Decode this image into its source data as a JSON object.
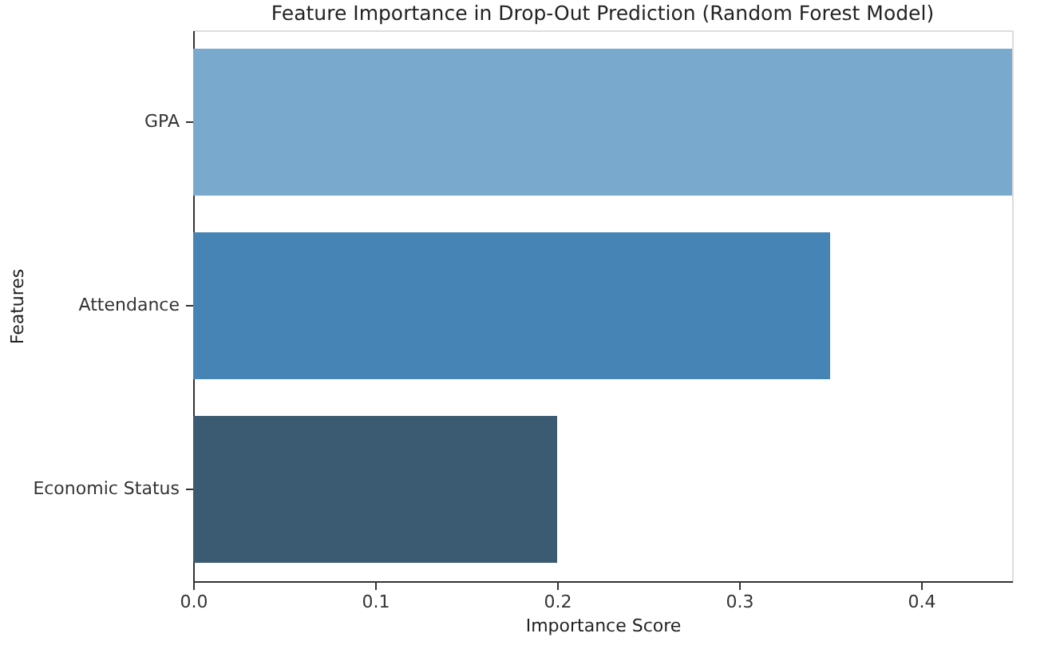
{
  "chart_data": {
    "type": "bar",
    "orientation": "horizontal",
    "title": "Feature Importance in Drop-Out Prediction (Random Forest Model)",
    "xlabel": "Importance Score",
    "ylabel": "Features",
    "categories": [
      "GPA",
      "Attendance",
      "Economic Status"
    ],
    "values": [
      0.45,
      0.35,
      0.2
    ],
    "colors": [
      "#79aacd",
      "#4684b5",
      "#3b5b72"
    ],
    "xlim": [
      0,
      0.45
    ],
    "xticks": [
      {
        "value": 0,
        "label": "0.0"
      },
      0.1,
      0.2,
      0.3,
      0.4
    ],
    "grid": false
  }
}
